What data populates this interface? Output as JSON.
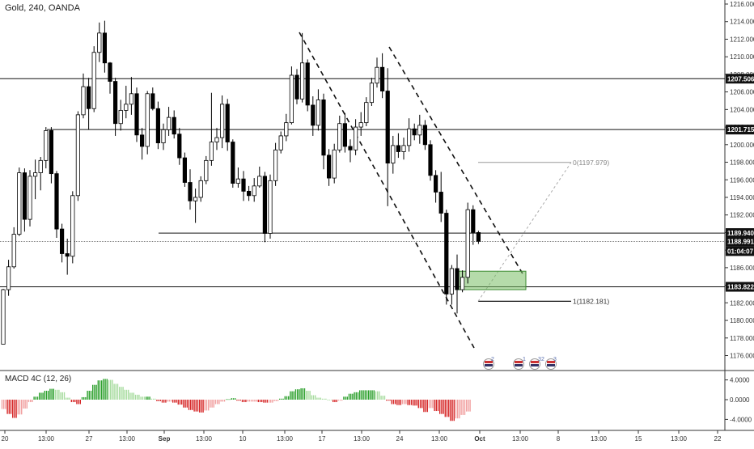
{
  "chart_title": "Gold, 240, OANDA",
  "chart_data": [
    {
      "type": "candlestick",
      "ylim": [
        1175,
        1217
      ],
      "yticks": [
        "1216.000",
        "1214.000",
        "1212.000",
        "1210.000",
        "1208.000",
        "1206.000",
        "1204.000",
        "1202.000",
        "1200.000",
        "1198.000",
        "1196.000",
        "1194.000",
        "1192.000",
        "1190.000",
        "1188.000",
        "1186.000",
        "1184.000",
        "1182.000",
        "1180.000",
        "1178.000",
        "1176.000"
      ],
      "xticks": [
        "20",
        "13:00",
        "27",
        "13:00",
        "Sep",
        "13:00",
        "10",
        "13:00",
        "17",
        "13:00",
        "24",
        "13:00",
        "Oct",
        "13:00",
        "8",
        "13:00",
        "15",
        "13:00",
        "22"
      ],
      "price_levels": [
        {
          "value": 1207.506,
          "label": "1207.506"
        },
        {
          "value": 1201.715,
          "label": "1201.715"
        },
        {
          "value": 1189.94,
          "label": "1189.940"
        },
        {
          "value": 1188.991,
          "label": "1188.991"
        },
        {
          "value": 1183.822,
          "label": "1183.822"
        }
      ],
      "countdown_label": "01:04:07",
      "fib_labels": [
        {
          "value": 1197.979,
          "label": "0(1197.979)"
        },
        {
          "value": 1182.181,
          "label": "1(1182.181)"
        }
      ],
      "candles": [
        [
          1177.3,
          1183.6,
          1177.3,
          1183.5
        ],
        [
          1183.5,
          1186.9,
          1182.8,
          1186.1
        ],
        [
          1186.1,
          1190.6,
          1185.9,
          1189.8
        ],
        [
          1189.8,
          1197.4,
          1189.6,
          1196.8
        ],
        [
          1196.8,
          1197.3,
          1190.1,
          1191.5
        ],
        [
          1191.5,
          1197.1,
          1190.7,
          1196.4
        ],
        [
          1196.4,
          1198.3,
          1193.8,
          1196.8
        ],
        [
          1196.8,
          1198.6,
          1194.8,
          1198.2
        ],
        [
          1198.2,
          1202.0,
          1197.3,
          1201.6
        ],
        [
          1201.6,
          1202.0,
          1195.6,
          1196.7
        ],
        [
          1196.7,
          1197.0,
          1189.4,
          1190.4
        ],
        [
          1190.4,
          1191.0,
          1186.6,
          1187.6
        ],
        [
          1187.6,
          1189.3,
          1185.2,
          1187.3
        ],
        [
          1187.3,
          1194.7,
          1186.5,
          1194.2
        ],
        [
          1194.2,
          1203.8,
          1193.6,
          1203.4
        ],
        [
          1203.4,
          1208.1,
          1203.0,
          1206.6
        ],
        [
          1206.6,
          1207.6,
          1201.7,
          1204.1
        ],
        [
          1204.1,
          1211.2,
          1203.7,
          1210.5
        ],
        [
          1210.5,
          1213.9,
          1209.4,
          1212.7
        ],
        [
          1212.7,
          1214.1,
          1208.2,
          1209.3
        ],
        [
          1209.3,
          1209.4,
          1205.8,
          1207.2
        ],
        [
          1207.2,
          1207.6,
          1201.0,
          1202.4
        ],
        [
          1202.4,
          1205.1,
          1201.6,
          1203.9
        ],
        [
          1203.9,
          1206.7,
          1203.0,
          1204.6
        ],
        [
          1204.6,
          1207.7,
          1203.4,
          1205.8
        ],
        [
          1205.8,
          1206.5,
          1200.3,
          1201.1
        ],
        [
          1201.1,
          1201.9,
          1198.3,
          1199.8
        ],
        [
          1199.8,
          1206.1,
          1198.9,
          1205.8
        ],
        [
          1205.8,
          1206.5,
          1203.9,
          1204.1
        ],
        [
          1204.1,
          1204.9,
          1199.5,
          1200.2
        ],
        [
          1200.2,
          1202.4,
          1199.4,
          1201.7
        ],
        [
          1201.7,
          1204.3,
          1201.0,
          1203.1
        ],
        [
          1203.1,
          1203.9,
          1200.7,
          1201.2
        ],
        [
          1201.2,
          1201.9,
          1197.7,
          1198.5
        ],
        [
          1198.5,
          1199.1,
          1195.2,
          1195.7
        ],
        [
          1195.7,
          1197.2,
          1192.6,
          1193.6
        ],
        [
          1193.6,
          1195.0,
          1191.1,
          1194.0
        ],
        [
          1194.0,
          1196.4,
          1193.5,
          1195.9
        ],
        [
          1195.9,
          1198.7,
          1195.5,
          1198.2
        ],
        [
          1198.2,
          1205.9,
          1197.6,
          1200.3
        ],
        [
          1200.3,
          1201.9,
          1199.4,
          1200.8
        ],
        [
          1200.8,
          1205.6,
          1199.6,
          1204.6
        ],
        [
          1204.6,
          1205.2,
          1199.3,
          1200.3
        ],
        [
          1200.3,
          1200.6,
          1195.1,
          1195.6
        ],
        [
          1195.6,
          1197.4,
          1195.1,
          1196.1
        ],
        [
          1196.1,
          1197.0,
          1193.6,
          1194.7
        ],
        [
          1194.7,
          1195.3,
          1193.6,
          1194.2
        ],
        [
          1194.2,
          1196.2,
          1193.5,
          1195.3
        ],
        [
          1195.3,
          1197.5,
          1195.1,
          1196.4
        ],
        [
          1196.4,
          1196.9,
          1188.9,
          1189.9
        ],
        [
          1189.9,
          1196.6,
          1189.3,
          1195.9
        ],
        [
          1195.9,
          1200.2,
          1195.3,
          1199.4
        ],
        [
          1199.4,
          1201.5,
          1199.0,
          1201.0
        ],
        [
          1201.0,
          1203.5,
          1200.4,
          1202.5
        ],
        [
          1202.5,
          1208.9,
          1202.3,
          1207.9
        ],
        [
          1207.9,
          1208.6,
          1204.6,
          1205.2
        ],
        [
          1205.2,
          1212.7,
          1204.8,
          1209.3
        ],
        [
          1209.3,
          1209.7,
          1203.8,
          1204.5
        ],
        [
          1204.5,
          1205.5,
          1201.0,
          1202.2
        ],
        [
          1202.2,
          1206.3,
          1201.6,
          1205.1
        ],
        [
          1205.1,
          1205.8,
          1197.2,
          1198.8
        ],
        [
          1198.8,
          1199.5,
          1195.3,
          1196.2
        ],
        [
          1196.2,
          1200.1,
          1195.6,
          1199.4
        ],
        [
          1199.4,
          1203.3,
          1199.1,
          1202.4
        ],
        [
          1202.4,
          1203.6,
          1199.1,
          1199.8
        ],
        [
          1199.8,
          1200.6,
          1198.0,
          1199.4
        ],
        [
          1199.4,
          1202.9,
          1198.8,
          1202.0
        ],
        [
          1202.0,
          1203.7,
          1201.0,
          1202.5
        ],
        [
          1202.5,
          1205.4,
          1202.1,
          1204.8
        ],
        [
          1204.8,
          1207.6,
          1204.4,
          1207.0
        ],
        [
          1207.0,
          1209.9,
          1206.5,
          1208.8
        ],
        [
          1208.8,
          1210.4,
          1205.3,
          1206.1
        ],
        [
          1206.1,
          1208.7,
          1193.0,
          1197.9
        ],
        [
          1197.9,
          1201.0,
          1196.7,
          1199.9
        ],
        [
          1199.9,
          1201.3,
          1198.5,
          1199.2
        ],
        [
          1199.2,
          1200.8,
          1198.3,
          1199.9
        ],
        [
          1199.9,
          1203.0,
          1199.2,
          1201.8
        ],
        [
          1201.8,
          1202.4,
          1200.5,
          1201.1
        ],
        [
          1201.1,
          1203.4,
          1200.1,
          1202.2
        ],
        [
          1202.2,
          1202.8,
          1199.4,
          1200.0
        ],
        [
          1200.0,
          1200.5,
          1195.9,
          1196.5
        ],
        [
          1196.5,
          1197.1,
          1193.4,
          1194.6
        ],
        [
          1194.6,
          1196.9,
          1191.2,
          1192.2
        ],
        [
          1192.2,
          1192.6,
          1181.8,
          1183.0
        ],
        [
          1183.0,
          1186.3,
          1181.8,
          1185.9
        ],
        [
          1185.9,
          1187.5,
          1180.8,
          1183.5
        ],
        [
          1183.5,
          1185.7,
          1183.2,
          1184.9
        ],
        [
          1184.9,
          1193.4,
          1184.2,
          1192.6
        ],
        [
          1192.6,
          1193.1,
          1188.6,
          1190.0
        ],
        [
          1190.0,
          1190.2,
          1188.7,
          1189.0
        ]
      ]
    },
    {
      "type": "histogram",
      "title": "MACD 4C (12, 26)",
      "ylim": [
        -5.2,
        5.2
      ],
      "yticks": [
        "4.0000",
        "0.0000",
        "-4.0000"
      ],
      "values": [
        -1.9,
        -2.9,
        -3.7,
        -3.0,
        -1.8,
        -0.5,
        0.6,
        1.4,
        1.8,
        2.2,
        2.0,
        1.5,
        0.4,
        -0.5,
        -0.9,
        0.5,
        1.8,
        3.0,
        3.9,
        4.2,
        4.0,
        3.2,
        2.6,
        2.0,
        1.4,
        1.0,
        0.6,
        0.6,
        0.2,
        -0.3,
        -0.6,
        -0.4,
        -0.6,
        -1.0,
        -1.6,
        -2.1,
        -2.4,
        -2.6,
        -2.2,
        -1.6,
        -0.9,
        -0.4,
        0.1,
        0.3,
        -0.2,
        -0.5,
        -0.4,
        -0.4,
        -0.5,
        -0.6,
        -0.6,
        -0.3,
        0.2,
        0.7,
        1.7,
        2.1,
        2.3,
        1.8,
        0.9,
        0.4,
        0.2,
        0.0,
        -0.5,
        -0.2,
        0.6,
        1.2,
        1.5,
        1.9,
        1.9,
        1.9,
        1.7,
        0.8,
        -0.2,
        -0.9,
        -1.1,
        -0.9,
        -1.1,
        -1.2,
        -1.7,
        -2.5,
        -1.7,
        -2.3,
        -2.9,
        -3.5,
        -4.3,
        -3.8,
        -3.1,
        -2.4
      ]
    }
  ],
  "event_badges": [
    "2",
    "1",
    "3",
    "2",
    "3"
  ]
}
